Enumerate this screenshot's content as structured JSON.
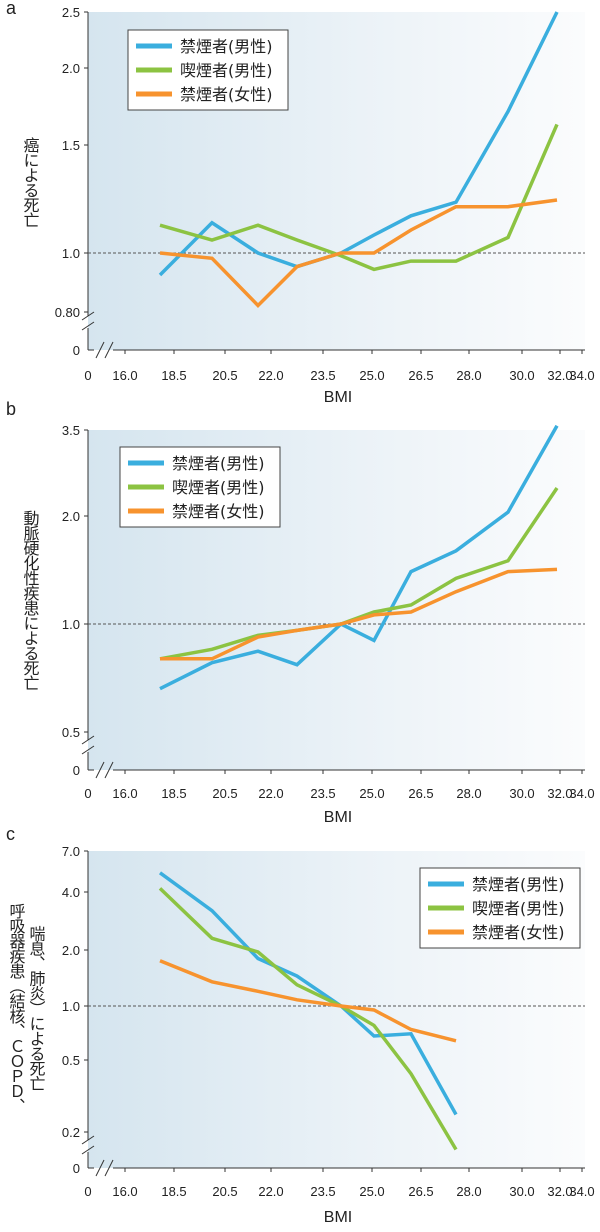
{
  "chart_data": [
    {
      "type": "line",
      "panel_label": "a",
      "ylabel_lines": [
        "癌による死亡"
      ],
      "xlabel": "BMI",
      "x_ticks": [
        "16.0",
        "18.5",
        "20.5",
        "22.0",
        "23.5",
        "25.0",
        "26.5",
        "28.0",
        "30.0",
        "32.0",
        "34.0"
      ],
      "x_zero_label": "0",
      "y_zero_label": "0",
      "y_ticks": [
        {
          "value": 2.5,
          "label": "2.5"
        },
        {
          "value": 2.0,
          "label": "2.0"
        },
        {
          "value": 1.5,
          "label": "1.5"
        },
        {
          "value": 1.0,
          "label": "1.0"
        },
        {
          "value": 0.8,
          "label": "0.80"
        }
      ],
      "reference_line": 1.0,
      "legend_position": "top-left",
      "series": [
        {
          "name": "禁煙者(男性)",
          "color": "#3aaede",
          "values": [
            0.92,
            1.12,
            1.0,
            0.95,
            1.0,
            1.07,
            1.15,
            1.21,
            1.7,
            2.5
          ]
        },
        {
          "name": "喫煙者(男性)",
          "color": "#8cc342",
          "values": [
            1.11,
            1.05,
            1.11,
            1.05,
            0.99,
            0.94,
            0.97,
            0.97,
            1.06,
            1.62
          ]
        },
        {
          "name": "禁煙者(女性)",
          "color": "#f7932e",
          "values": [
            1.0,
            0.98,
            0.82,
            0.95,
            1.0,
            1.0,
            1.09,
            1.19,
            1.19,
            1.22
          ]
        }
      ]
    },
    {
      "type": "line",
      "panel_label": "b",
      "ylabel_lines": [
        "動脈硬化性疾患による死亡"
      ],
      "xlabel": "BMI",
      "x_ticks": [
        "16.0",
        "18.5",
        "20.5",
        "22.0",
        "23.5",
        "25.0",
        "26.5",
        "28.0",
        "30.0",
        "32.0",
        "34.0"
      ],
      "x_zero_label": "0",
      "y_zero_label": "0",
      "y_ticks": [
        {
          "value": 3.5,
          "label": "3.5"
        },
        {
          "value": 2.0,
          "label": "2.0"
        },
        {
          "value": 1.0,
          "label": "1.0"
        },
        {
          "value": 0.5,
          "label": "0.5"
        }
      ],
      "reference_line": 1.0,
      "legend_position": "top-left",
      "series": [
        {
          "name": "禁煙者(男性)",
          "color": "#3aaede",
          "values": [
            0.66,
            0.78,
            0.84,
            0.77,
            1.0,
            0.9,
            1.4,
            1.6,
            2.05,
            3.6
          ]
        },
        {
          "name": "喫煙者(男性)",
          "color": "#8cc342",
          "values": [
            0.8,
            0.85,
            0.93,
            0.96,
            1.0,
            1.08,
            1.13,
            1.34,
            1.5,
            2.4
          ]
        },
        {
          "name": "禁煙者(女性)",
          "color": "#f7932e",
          "values": [
            0.8,
            0.8,
            0.92,
            0.96,
            1.0,
            1.06,
            1.08,
            1.23,
            1.4,
            1.42
          ]
        }
      ]
    },
    {
      "type": "line",
      "panel_label": "c",
      "ylabel_lines": [
        "呼吸器疾患（結核、ＣＯＰＤ、",
        "喘息、肺炎）による死亡"
      ],
      "xlabel": "BMI",
      "x_ticks": [
        "16.0",
        "18.5",
        "20.5",
        "22.0",
        "23.5",
        "25.0",
        "26.5",
        "28.0",
        "30.0",
        "32.0",
        "34.0"
      ],
      "x_zero_label": "0",
      "y_zero_label": "0",
      "y_ticks": [
        {
          "value": 7.0,
          "label": "7.0"
        },
        {
          "value": 4.0,
          "label": "4.0"
        },
        {
          "value": 2.0,
          "label": "2.0"
        },
        {
          "value": 1.0,
          "label": "1.0"
        },
        {
          "value": 0.5,
          "label": "0.5"
        },
        {
          "value": 0.2,
          "label": "0.2"
        }
      ],
      "reference_line": 1.0,
      "legend_position": "top-right",
      "series": [
        {
          "name": "禁煙者(男性)",
          "color": "#3aaede",
          "values": [
            5.2,
            3.2,
            1.8,
            1.45,
            1.0,
            0.68,
            0.7,
            0.25
          ]
        },
        {
          "name": "喫煙者(男性)",
          "color": "#8cc342",
          "values": [
            4.2,
            2.3,
            1.95,
            1.3,
            1.0,
            0.78,
            0.42,
            0.16
          ]
        },
        {
          "name": "禁煙者(女性)",
          "color": "#f7932e",
          "values": [
            1.75,
            1.35,
            1.2,
            1.08,
            1.0,
            0.95,
            0.74,
            0.64
          ]
        }
      ]
    }
  ]
}
